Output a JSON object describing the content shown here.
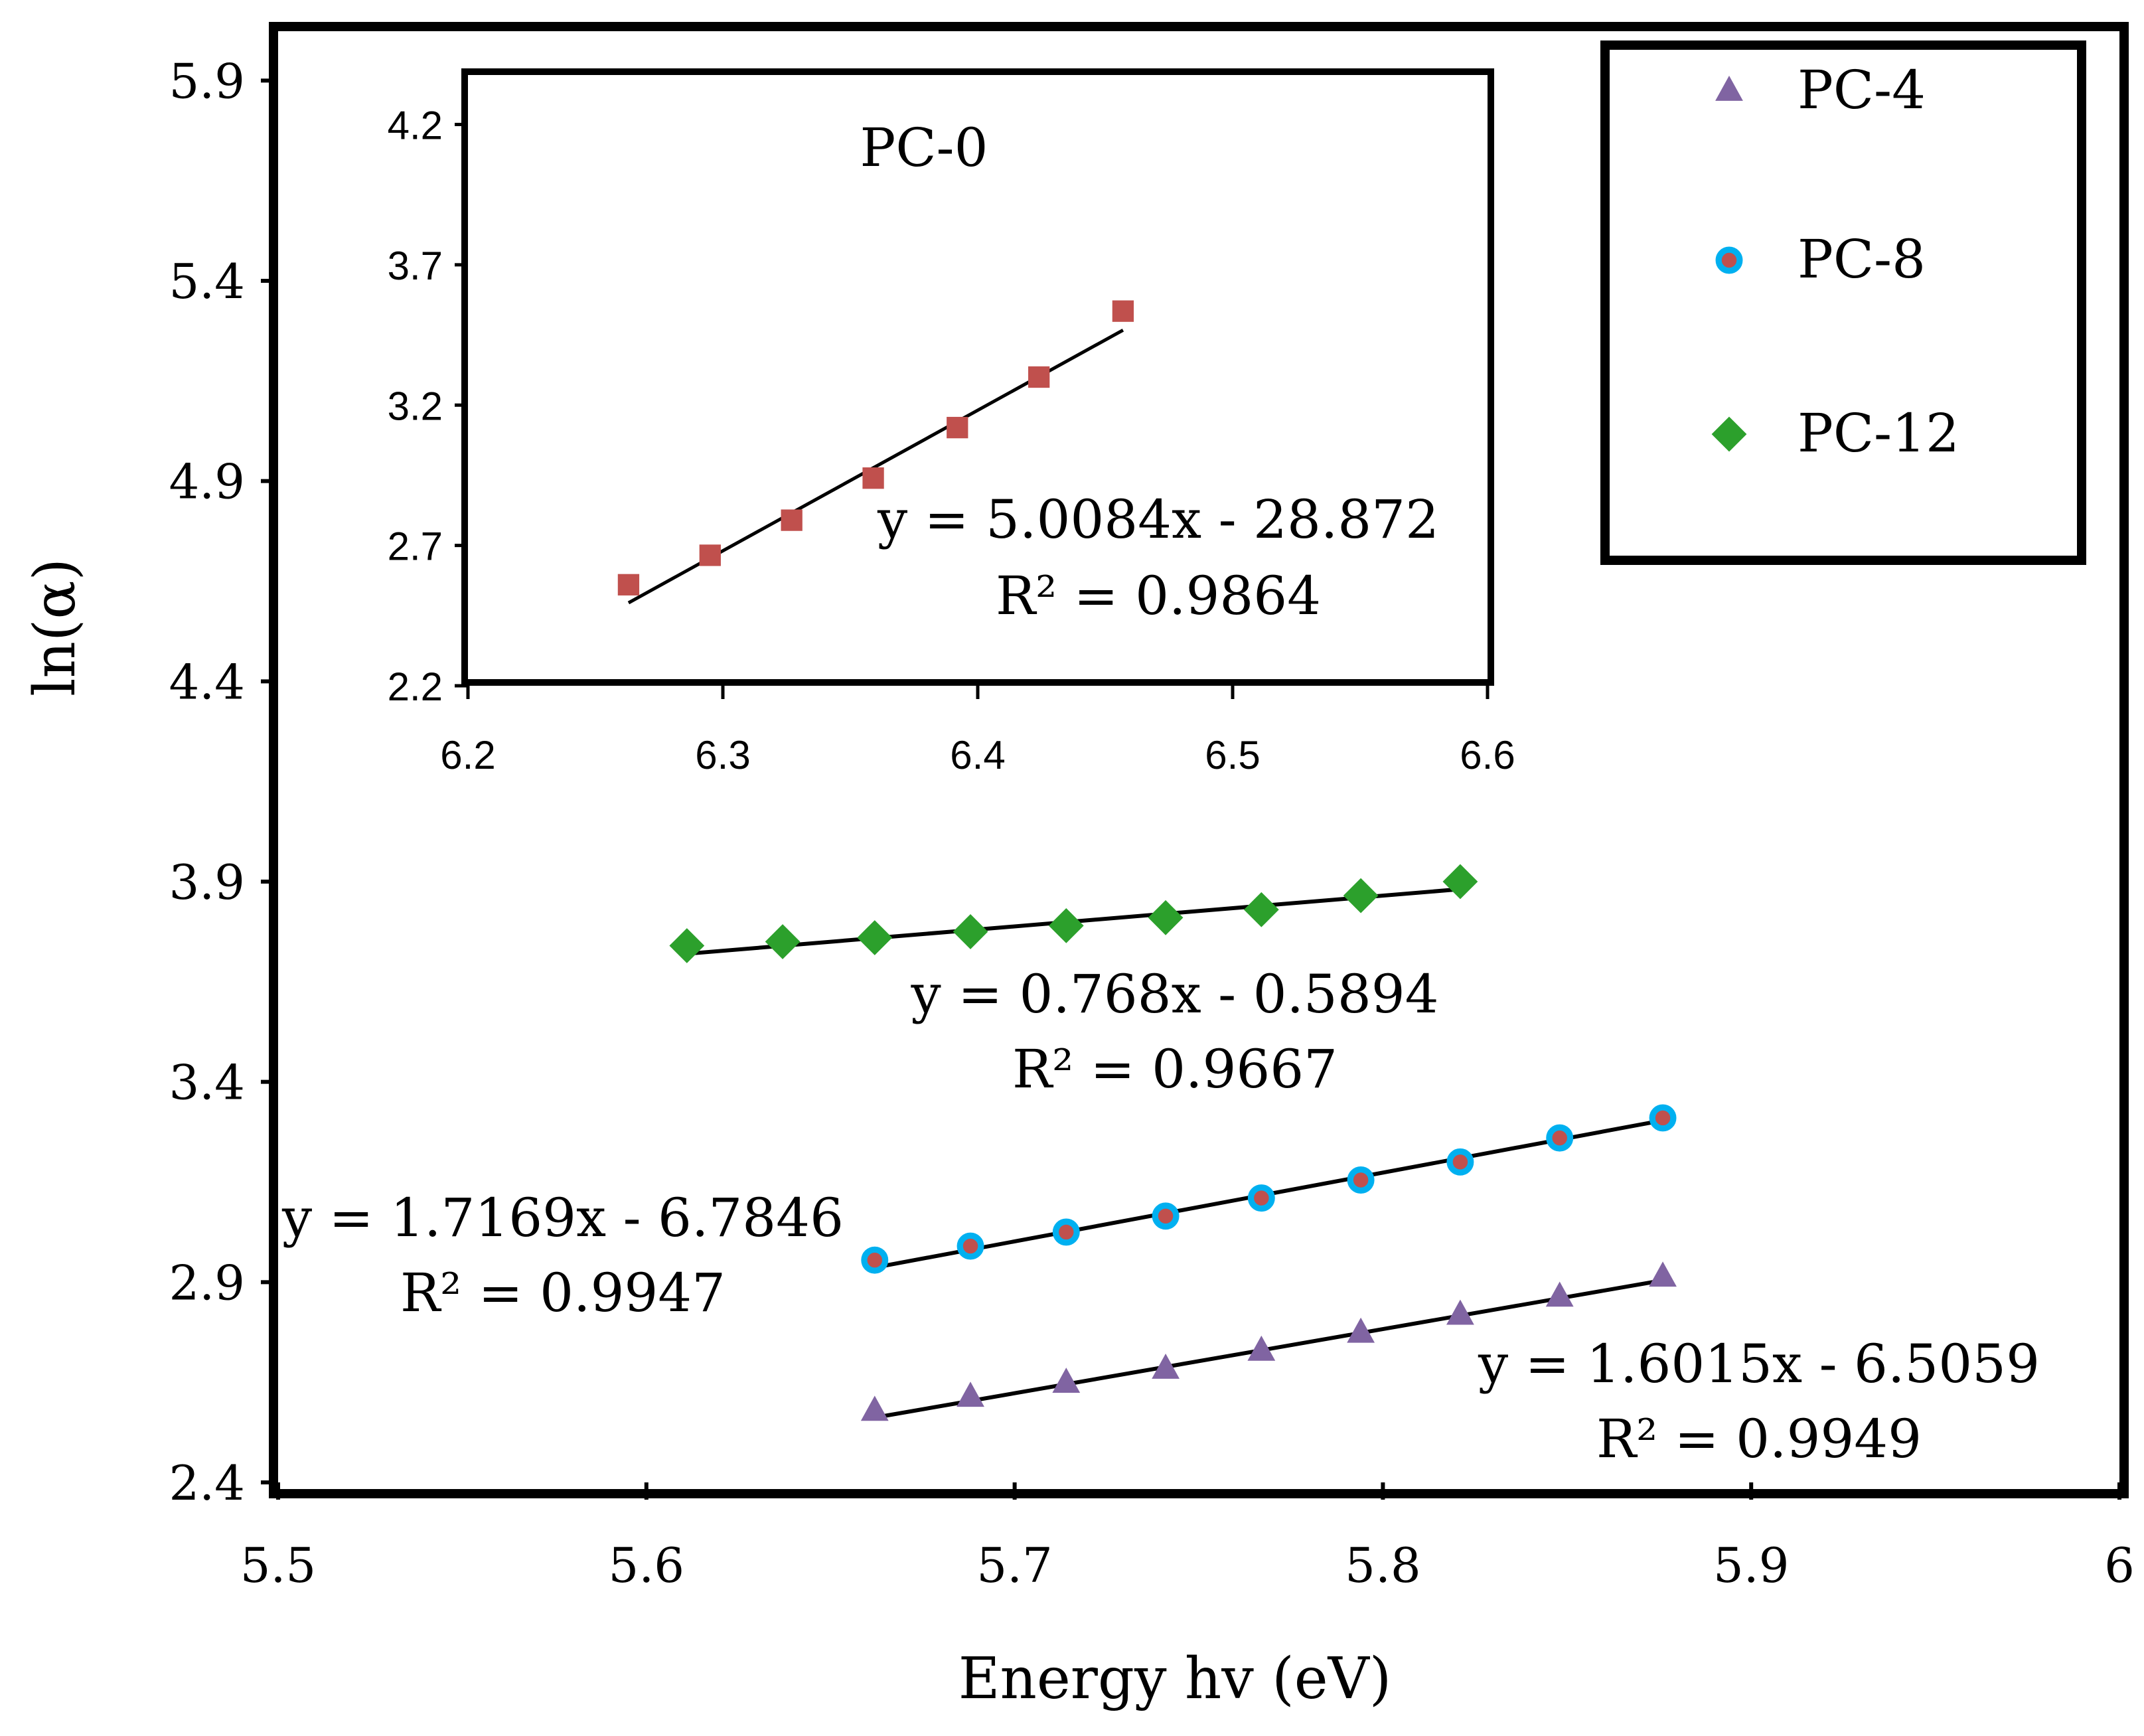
{
  "chart_data": [
    {
      "type": "scatter",
      "role": "main",
      "title": "",
      "xlabel": "Energy hv (eV)",
      "ylabel": "ln(α)",
      "xlim": [
        5.5,
        6.0
      ],
      "ylim": [
        2.4,
        6.0
      ],
      "xticks": [
        5.5,
        5.6,
        5.7,
        5.8,
        5.9,
        6.0
      ],
      "xtick_labels": [
        "5.5",
        "5.6",
        "5.7",
        "5.8",
        "5.9",
        "6"
      ],
      "yticks": [
        2.4,
        2.9,
        3.4,
        3.9,
        4.4,
        4.9,
        5.4,
        5.9
      ],
      "ytick_labels": [
        "2.4",
        "2.9",
        "3.4",
        "3.9",
        "4.4",
        "4.9",
        "5.4",
        "5.9"
      ],
      "grid": false,
      "legend": {
        "position": "top-right",
        "entries": [
          {
            "label": "PC-4",
            "marker": "triangle",
            "color": "#8064A2"
          },
          {
            "label": "PC-8",
            "marker": "circle",
            "color": "#00B0F0",
            "fill": "#C0504D"
          },
          {
            "label": "PC-12",
            "marker": "diamond",
            "color": "#2CA02C"
          }
        ]
      },
      "series": [
        {
          "name": "PC-4",
          "marker": "triangle",
          "color": "#8064A2",
          "x": [
            5.662,
            5.688,
            5.714,
            5.741,
            5.767,
            5.794,
            5.821,
            5.848,
            5.876
          ],
          "y": [
            2.58,
            2.615,
            2.65,
            2.685,
            2.73,
            2.775,
            2.82,
            2.865,
            2.915
          ],
          "fit": {
            "slope": 1.6015,
            "intercept": -6.5059,
            "x_range": [
              5.662,
              5.876
            ]
          },
          "equation": "y = 1.6015x - 6.5059",
          "r2": "R² = 0.9949"
        },
        {
          "name": "PC-8",
          "marker": "circle",
          "color": "#00B0F0",
          "fill": "#C0504D",
          "x": [
            5.662,
            5.688,
            5.714,
            5.741,
            5.767,
            5.794,
            5.821,
            5.848,
            5.876
          ],
          "y": [
            2.955,
            2.99,
            3.025,
            3.065,
            3.11,
            3.155,
            3.2,
            3.26,
            3.31
          ],
          "fit": {
            "slope": 1.7169,
            "intercept": -6.7846,
            "x_range": [
              5.662,
              5.876
            ]
          },
          "equation": "y = 1.7169x - 6.7846",
          "r2": "R² = 0.9947"
        },
        {
          "name": "PC-12",
          "marker": "diamond",
          "color": "#2CA02C",
          "x": [
            5.611,
            5.637,
            5.662,
            5.688,
            5.714,
            5.741,
            5.767,
            5.794,
            5.821
          ],
          "y": [
            3.74,
            3.75,
            3.76,
            3.775,
            3.79,
            3.81,
            3.83,
            3.865,
            3.9
          ],
          "fit": {
            "slope": 0.768,
            "intercept": -0.5894,
            "x_range": [
              5.611,
              5.821
            ]
          },
          "equation": "y = 0.768x - 0.5894",
          "r2": "R² = 0.9667"
        }
      ]
    },
    {
      "type": "scatter",
      "role": "inset",
      "title": "PC-0",
      "xlabel": "",
      "ylabel": "",
      "xlim": [
        6.2,
        6.6
      ],
      "ylim": [
        2.2,
        4.4
      ],
      "xticks": [
        6.2,
        6.3,
        6.4,
        6.5,
        6.6
      ],
      "xtick_labels": [
        "6.2",
        "6.3",
        "6.4",
        "6.5",
        "6.6"
      ],
      "yticks": [
        2.2,
        2.7,
        3.2,
        3.7,
        4.2
      ],
      "ytick_labels": [
        "2.2",
        "2.7",
        "3.2",
        "3.7",
        "4.2"
      ],
      "grid": false,
      "series": [
        {
          "name": "PC-0",
          "marker": "square",
          "color": "#C0504D",
          "x": [
            6.263,
            6.295,
            6.327,
            6.359,
            6.392,
            6.424,
            6.457
          ],
          "y": [
            2.56,
            2.665,
            2.79,
            2.94,
            3.12,
            3.3,
            3.535
          ],
          "fit": {
            "slope": 5.0084,
            "intercept": -28.872,
            "x_range": [
              6.263,
              6.457
            ]
          },
          "equation": "y = 5.0084x - 28.872",
          "r2": "R² = 0.9864"
        }
      ]
    }
  ]
}
